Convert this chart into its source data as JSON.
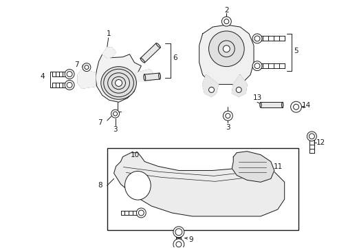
{
  "bg_color": "#ffffff",
  "line_color": "#1a1a1a",
  "fig_width": 4.9,
  "fig_height": 3.6,
  "dpi": 100,
  "label_fontsize": 7.5,
  "lw": 0.7
}
